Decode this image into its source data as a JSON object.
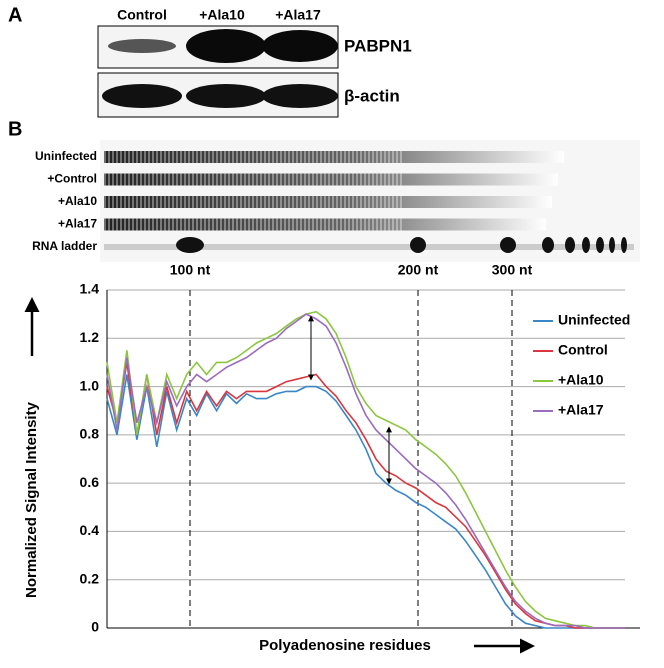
{
  "panel_a": {
    "label": "A",
    "lanes": [
      "Control",
      "+Ala10",
      "+Ala17"
    ],
    "rows": [
      "PABPN1",
      "β-actin"
    ]
  },
  "panel_b": {
    "label": "B",
    "gel_lanes": [
      "Uninfected",
      "+Control",
      "+Ala10",
      "+Ala17",
      "RNA ladder"
    ]
  },
  "chart_data": {
    "type": "line",
    "ylabel": "Normalized Signal Intensity",
    "xlabel": "Polyadenosine residues",
    "annotations": [
      "100 nt",
      "200 nt",
      "300 nt"
    ],
    "ylim": [
      0,
      1.4
    ],
    "yticks": [
      0,
      0.2,
      0.4,
      0.6,
      0.8,
      {
        "value": 1,
        "label": "1.0"
      },
      1.2,
      1.4
    ],
    "grid": true,
    "legend": "right",
    "series": [
      {
        "name": "Uninfected",
        "color": "#3a87c8",
        "values": [
          0.95,
          0.8,
          1.05,
          0.78,
          1.0,
          0.75,
          0.98,
          0.82,
          0.95,
          0.88,
          0.97,
          0.9,
          0.97,
          0.93,
          0.97,
          0.95,
          0.95,
          0.97,
          0.98,
          0.98,
          1.0,
          1.0,
          0.98,
          0.94,
          0.88,
          0.82,
          0.74,
          0.64,
          0.6,
          0.57,
          0.55,
          0.52,
          0.5,
          0.47,
          0.44,
          0.41,
          0.36,
          0.3,
          0.24,
          0.17,
          0.1,
          0.05,
          0.02,
          0.01,
          0,
          0,
          0,
          0,
          0,
          0,
          0,
          0,
          0
        ]
      },
      {
        "name": "Control",
        "color": "#d9363e",
        "values": [
          1.0,
          0.85,
          1.1,
          0.8,
          1.05,
          0.8,
          1.0,
          0.85,
          0.98,
          0.9,
          0.98,
          0.92,
          0.98,
          0.95,
          0.98,
          0.98,
          0.98,
          1.0,
          1.02,
          1.03,
          1.04,
          1.05,
          1.0,
          0.96,
          0.9,
          0.85,
          0.78,
          0.7,
          0.65,
          0.63,
          0.6,
          0.58,
          0.55,
          0.52,
          0.5,
          0.46,
          0.42,
          0.36,
          0.3,
          0.23,
          0.16,
          0.1,
          0.06,
          0.03,
          0.02,
          0.01,
          0.01,
          0,
          0,
          0,
          0,
          0,
          0
        ]
      },
      {
        "name": "+Ala10",
        "color": "#8cc63f",
        "values": [
          1.1,
          0.85,
          1.15,
          0.8,
          1.05,
          0.85,
          1.05,
          0.95,
          1.05,
          1.1,
          1.05,
          1.1,
          1.1,
          1.12,
          1.15,
          1.18,
          1.2,
          1.22,
          1.25,
          1.28,
          1.3,
          1.31,
          1.28,
          1.22,
          1.12,
          1.0,
          0.93,
          0.88,
          0.86,
          0.84,
          0.82,
          0.78,
          0.75,
          0.72,
          0.68,
          0.63,
          0.56,
          0.48,
          0.4,
          0.32,
          0.24,
          0.17,
          0.11,
          0.07,
          0.04,
          0.03,
          0.02,
          0.01,
          0.01,
          0,
          0,
          0,
          0
        ]
      },
      {
        "name": "+Ala17",
        "color": "#9b6bbd",
        "values": [
          1.05,
          0.82,
          1.12,
          0.85,
          1.0,
          0.85,
          1.02,
          0.92,
          1.0,
          1.05,
          1.02,
          1.05,
          1.08,
          1.1,
          1.12,
          1.15,
          1.18,
          1.2,
          1.24,
          1.27,
          1.3,
          1.28,
          1.25,
          1.18,
          1.08,
          0.97,
          0.88,
          0.82,
          0.78,
          0.74,
          0.7,
          0.66,
          0.63,
          0.6,
          0.56,
          0.51,
          0.45,
          0.38,
          0.31,
          0.24,
          0.17,
          0.11,
          0.07,
          0.04,
          0.02,
          0.01,
          0.01,
          0.01,
          0,
          0,
          0,
          0,
          0
        ]
      }
    ]
  }
}
